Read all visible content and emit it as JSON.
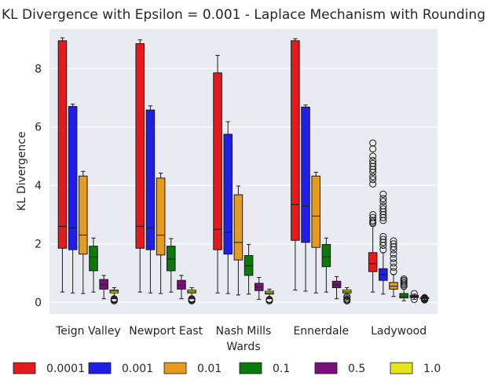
{
  "chart_data": {
    "type": "box",
    "title": "KL Divergence with Epsilon = 0.001 - Laplace Mechanism with Rounding",
    "xlabel": "Wards",
    "ylabel": "KL Divergence",
    "ylim": [
      -0.4,
      9.35
    ],
    "yticks": [
      0,
      2,
      4,
      6,
      8
    ],
    "grid": true,
    "legend_position": "bottom",
    "categories": [
      "Teign Valley",
      "Newport East",
      "Nash Mills",
      "Ennerdale",
      "Ladywood"
    ],
    "series": [
      {
        "name": "0.0001",
        "color": "#e41a1c",
        "boxes": [
          {
            "whislo": 0.35,
            "q1": 1.85,
            "med": 2.6,
            "q3": 8.95,
            "whishi": 9.05,
            "fliers": []
          },
          {
            "whislo": 0.35,
            "q1": 1.85,
            "med": 2.6,
            "q3": 8.85,
            "whishi": 8.98,
            "fliers": []
          },
          {
            "whislo": 0.32,
            "q1": 1.8,
            "med": 2.5,
            "q3": 7.85,
            "whishi": 8.45,
            "fliers": []
          },
          {
            "whislo": 0.42,
            "q1": 2.12,
            "med": 3.35,
            "q3": 8.95,
            "whishi": 9.02,
            "fliers": []
          },
          {
            "whislo": 0.35,
            "q1": 1.05,
            "med": 1.32,
            "q3": 1.7,
            "whishi": 2.6,
            "fliers": [
              2.7,
              2.75,
              2.8,
              2.9,
              3.0,
              4.05,
              4.2,
              4.3,
              4.45,
              4.55,
              4.65,
              4.75,
              4.85,
              5.0,
              5.25,
              5.45
            ]
          }
        ]
      },
      {
        "name": "0.001",
        "color": "#1f1fe8",
        "boxes": [
          {
            "whislo": 0.32,
            "q1": 1.8,
            "med": 2.55,
            "q3": 6.7,
            "whishi": 6.78,
            "fliers": []
          },
          {
            "whislo": 0.32,
            "q1": 1.8,
            "med": 2.55,
            "q3": 6.58,
            "whishi": 6.72,
            "fliers": []
          },
          {
            "whislo": 0.3,
            "q1": 1.65,
            "med": 2.4,
            "q3": 5.75,
            "whishi": 6.18,
            "fliers": []
          },
          {
            "whislo": 0.38,
            "q1": 2.05,
            "med": 3.3,
            "q3": 6.68,
            "whishi": 6.75,
            "fliers": []
          },
          {
            "whislo": 0.28,
            "q1": 0.75,
            "med": 0.95,
            "q3": 1.15,
            "whishi": 1.7,
            "fliers": [
              1.8,
              1.95,
              2.05,
              2.15,
              2.25,
              2.8,
              2.9,
              3.0,
              3.1,
              3.2,
              3.3,
              3.45,
              3.55,
              3.7
            ]
          }
        ]
      },
      {
        "name": "0.01",
        "color": "#e69b1e",
        "boxes": [
          {
            "whislo": 0.3,
            "q1": 1.65,
            "med": 2.3,
            "q3": 4.32,
            "whishi": 4.48,
            "fliers": []
          },
          {
            "whislo": 0.3,
            "q1": 1.62,
            "med": 2.3,
            "q3": 4.25,
            "whishi": 4.42,
            "fliers": []
          },
          {
            "whislo": 0.25,
            "q1": 1.45,
            "med": 2.05,
            "q3": 3.68,
            "whishi": 3.98,
            "fliers": []
          },
          {
            "whislo": 0.32,
            "q1": 1.88,
            "med": 2.95,
            "q3": 4.32,
            "whishi": 4.45,
            "fliers": []
          },
          {
            "whislo": 0.2,
            "q1": 0.45,
            "med": 0.55,
            "q3": 0.68,
            "whishi": 0.95,
            "fliers": [
              1.05,
              1.2,
              1.35,
              1.5,
              1.65,
              1.8,
              1.9,
              2.0,
              2.1
            ]
          }
        ]
      },
      {
        "name": "0.1",
        "color": "#0b7a0b",
        "boxes": [
          {
            "whislo": 0.35,
            "q1": 1.08,
            "med": 1.55,
            "q3": 1.92,
            "whishi": 2.2,
            "fliers": []
          },
          {
            "whislo": 0.35,
            "q1": 1.08,
            "med": 1.48,
            "q3": 1.92,
            "whishi": 2.18,
            "fliers": []
          },
          {
            "whislo": 0.28,
            "q1": 0.92,
            "med": 1.25,
            "q3": 1.6,
            "whishi": 1.98,
            "fliers": []
          },
          {
            "whislo": 0.35,
            "q1": 1.22,
            "med": 1.55,
            "q3": 1.98,
            "whishi": 2.2,
            "fliers": []
          },
          {
            "whislo": 0.05,
            "q1": 0.15,
            "med": 0.2,
            "q3": 0.3,
            "whishi": 0.45,
            "fliers": [
              0.55,
              0.6,
              0.65,
              0.7,
              0.75,
              0.8
            ]
          }
        ]
      },
      {
        "name": "0.5",
        "color": "#7b0f7b",
        "boxes": [
          {
            "whislo": 0.12,
            "q1": 0.45,
            "med": 0.6,
            "q3": 0.78,
            "whishi": 0.92,
            "fliers": []
          },
          {
            "whislo": 0.12,
            "q1": 0.45,
            "med": 0.58,
            "q3": 0.75,
            "whishi": 0.92,
            "fliers": []
          },
          {
            "whislo": 0.1,
            "q1": 0.4,
            "med": 0.52,
            "q3": 0.65,
            "whishi": 0.85,
            "fliers": []
          },
          {
            "whislo": 0.12,
            "q1": 0.5,
            "med": 0.6,
            "q3": 0.72,
            "whishi": 0.88,
            "fliers": []
          },
          {
            "whislo": 0.1,
            "q1": 0.16,
            "med": 0.2,
            "q3": 0.24,
            "whishi": 0.28,
            "fliers": [
              0.1,
              0.3
            ]
          }
        ]
      },
      {
        "name": "1.0",
        "color": "#e5e519",
        "boxes": [
          {
            "whislo": 0.12,
            "q1": 0.32,
            "med": 0.38,
            "q3": 0.42,
            "whishi": 0.5,
            "fliers": [
              0.05,
              0.08,
              0.1,
              0.12
            ]
          },
          {
            "whislo": 0.12,
            "q1": 0.32,
            "med": 0.36,
            "q3": 0.42,
            "whishi": 0.5,
            "fliers": [
              0.05,
              0.08,
              0.1,
              0.12
            ]
          },
          {
            "whislo": 0.12,
            "q1": 0.28,
            "med": 0.32,
            "q3": 0.38,
            "whishi": 0.45,
            "fliers": [
              0.05,
              0.08,
              0.1
            ]
          },
          {
            "whislo": 0.12,
            "q1": 0.32,
            "med": 0.36,
            "q3": 0.42,
            "whishi": 0.5,
            "fliers": [
              0.05,
              0.08,
              0.1,
              0.15,
              0.2
            ]
          },
          {
            "whislo": 0.08,
            "q1": 0.12,
            "med": 0.14,
            "q3": 0.16,
            "whishi": 0.18,
            "fliers": [
              0.08,
              0.1,
              0.12,
              0.14,
              0.16
            ]
          }
        ]
      }
    ]
  }
}
